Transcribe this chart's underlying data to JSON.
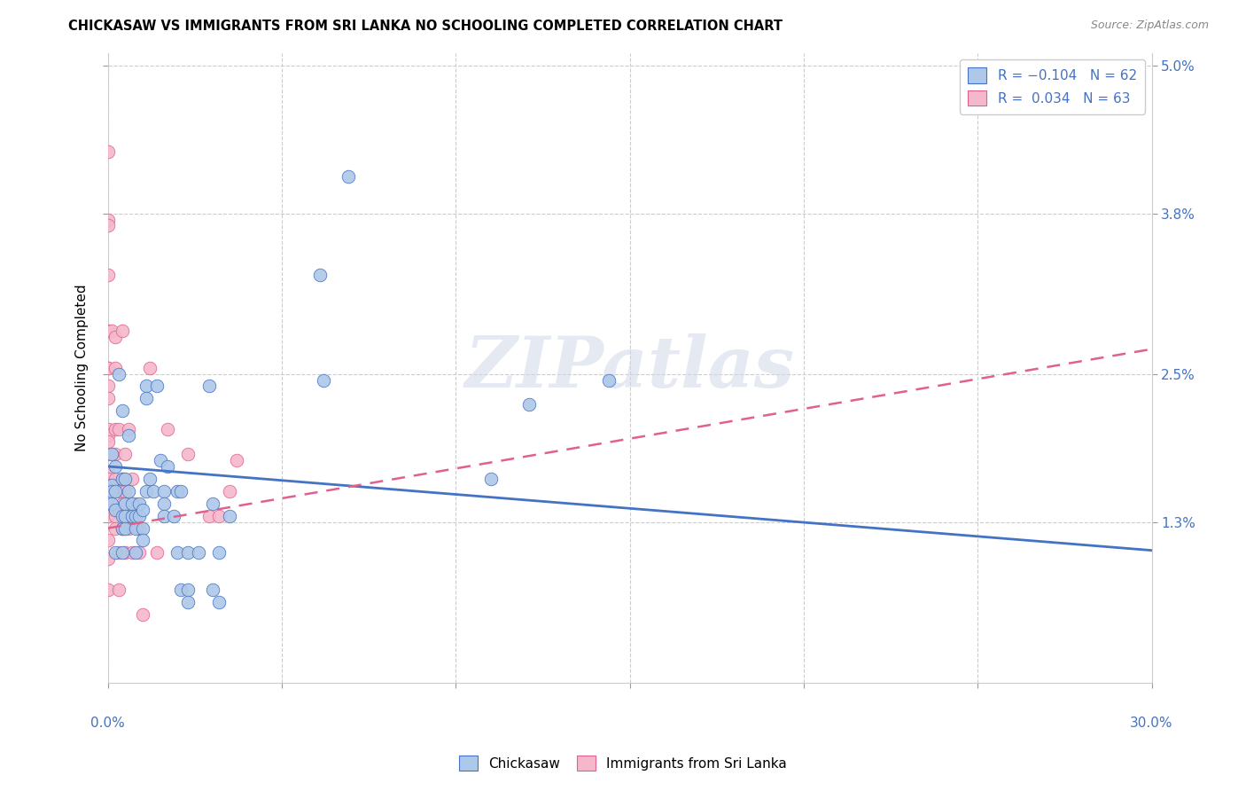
{
  "title": "CHICKASAW VS IMMIGRANTS FROM SRI LANKA NO SCHOOLING COMPLETED CORRELATION CHART",
  "source": "Source: ZipAtlas.com",
  "ylabel": "No Schooling Completed",
  "color_blue": "#adc8e8",
  "color_pink": "#f5b8cb",
  "line_blue": "#4472c4",
  "line_pink": "#e06090",
  "watermark": "ZIPatlas",
  "x_min": 0.0,
  "x_max": 0.3,
  "y_min": 0.0,
  "y_max": 0.051,
  "y_ticks": [
    0.013,
    0.025,
    0.038,
    0.05
  ],
  "y_tick_labels": [
    "1.3%",
    "2.5%",
    "3.8%",
    "5.0%"
  ],
  "blue_trend": [
    0.0175,
    0.0107
  ],
  "pink_trend": [
    0.0125,
    0.027
  ],
  "blue_scatter": [
    [
      0.001,
      0.0185
    ],
    [
      0.001,
      0.016
    ],
    [
      0.001,
      0.0155
    ],
    [
      0.001,
      0.0145
    ],
    [
      0.002,
      0.0175
    ],
    [
      0.002,
      0.0155
    ],
    [
      0.002,
      0.014
    ],
    [
      0.002,
      0.0105
    ],
    [
      0.003,
      0.025
    ],
    [
      0.004,
      0.022
    ],
    [
      0.004,
      0.0165
    ],
    [
      0.004,
      0.0135
    ],
    [
      0.004,
      0.0125
    ],
    [
      0.004,
      0.0105
    ],
    [
      0.005,
      0.0165
    ],
    [
      0.005,
      0.0145
    ],
    [
      0.005,
      0.0135
    ],
    [
      0.005,
      0.0125
    ],
    [
      0.006,
      0.02
    ],
    [
      0.006,
      0.0155
    ],
    [
      0.007,
      0.0145
    ],
    [
      0.007,
      0.0135
    ],
    [
      0.008,
      0.0135
    ],
    [
      0.008,
      0.0125
    ],
    [
      0.008,
      0.0105
    ],
    [
      0.009,
      0.0145
    ],
    [
      0.009,
      0.0135
    ],
    [
      0.01,
      0.0125
    ],
    [
      0.01,
      0.0115
    ],
    [
      0.01,
      0.014
    ],
    [
      0.011,
      0.024
    ],
    [
      0.011,
      0.023
    ],
    [
      0.011,
      0.0155
    ],
    [
      0.012,
      0.0165
    ],
    [
      0.013,
      0.0155
    ],
    [
      0.014,
      0.024
    ],
    [
      0.015,
      0.018
    ],
    [
      0.016,
      0.0155
    ],
    [
      0.016,
      0.0145
    ],
    [
      0.016,
      0.0135
    ],
    [
      0.017,
      0.0175
    ],
    [
      0.019,
      0.0135
    ],
    [
      0.02,
      0.0155
    ],
    [
      0.02,
      0.0105
    ],
    [
      0.021,
      0.0155
    ],
    [
      0.021,
      0.0075
    ],
    [
      0.023,
      0.0105
    ],
    [
      0.023,
      0.0075
    ],
    [
      0.023,
      0.0065
    ],
    [
      0.026,
      0.0105
    ],
    [
      0.029,
      0.024
    ],
    [
      0.03,
      0.0145
    ],
    [
      0.03,
      0.0075
    ],
    [
      0.032,
      0.0105
    ],
    [
      0.032,
      0.0065
    ],
    [
      0.035,
      0.0135
    ],
    [
      0.061,
      0.033
    ],
    [
      0.062,
      0.0245
    ],
    [
      0.069,
      0.041
    ],
    [
      0.11,
      0.0165
    ],
    [
      0.121,
      0.0225
    ],
    [
      0.144,
      0.0245
    ]
  ],
  "pink_scatter": [
    [
      0.0,
      0.043
    ],
    [
      0.0,
      0.0375
    ],
    [
      0.0,
      0.037
    ],
    [
      0.0,
      0.033
    ],
    [
      0.0,
      0.0285
    ],
    [
      0.0,
      0.0255
    ],
    [
      0.0,
      0.0255
    ],
    [
      0.0,
      0.024
    ],
    [
      0.0,
      0.023
    ],
    [
      0.0,
      0.0205
    ],
    [
      0.0,
      0.02
    ],
    [
      0.0,
      0.0195
    ],
    [
      0.0,
      0.0185
    ],
    [
      0.0,
      0.017
    ],
    [
      0.0,
      0.0165
    ],
    [
      0.0,
      0.016
    ],
    [
      0.0,
      0.015
    ],
    [
      0.0,
      0.0135
    ],
    [
      0.0,
      0.0115
    ],
    [
      0.0,
      0.01
    ],
    [
      0.0,
      0.0075
    ],
    [
      0.001,
      0.0285
    ],
    [
      0.002,
      0.028
    ],
    [
      0.002,
      0.0255
    ],
    [
      0.002,
      0.0205
    ],
    [
      0.002,
      0.0185
    ],
    [
      0.002,
      0.016
    ],
    [
      0.002,
      0.014
    ],
    [
      0.002,
      0.0165
    ],
    [
      0.002,
      0.0135
    ],
    [
      0.002,
      0.0125
    ],
    [
      0.003,
      0.0205
    ],
    [
      0.003,
      0.0155
    ],
    [
      0.003,
      0.014
    ],
    [
      0.003,
      0.0105
    ],
    [
      0.003,
      0.0075
    ],
    [
      0.004,
      0.0165
    ],
    [
      0.004,
      0.0285
    ],
    [
      0.004,
      0.0145
    ],
    [
      0.004,
      0.0125
    ],
    [
      0.005,
      0.0185
    ],
    [
      0.005,
      0.0135
    ],
    [
      0.005,
      0.0105
    ],
    [
      0.005,
      0.0155
    ],
    [
      0.006,
      0.0135
    ],
    [
      0.006,
      0.0125
    ],
    [
      0.006,
      0.0205
    ],
    [
      0.007,
      0.0165
    ],
    [
      0.007,
      0.0135
    ],
    [
      0.007,
      0.0135
    ],
    [
      0.007,
      0.0105
    ],
    [
      0.008,
      0.0145
    ],
    [
      0.009,
      0.0125
    ],
    [
      0.009,
      0.0105
    ],
    [
      0.01,
      0.0055
    ],
    [
      0.012,
      0.0255
    ],
    [
      0.014,
      0.0105
    ],
    [
      0.017,
      0.0205
    ],
    [
      0.023,
      0.0185
    ],
    [
      0.029,
      0.0135
    ],
    [
      0.032,
      0.0135
    ],
    [
      0.035,
      0.0155
    ],
    [
      0.037,
      0.018
    ]
  ]
}
